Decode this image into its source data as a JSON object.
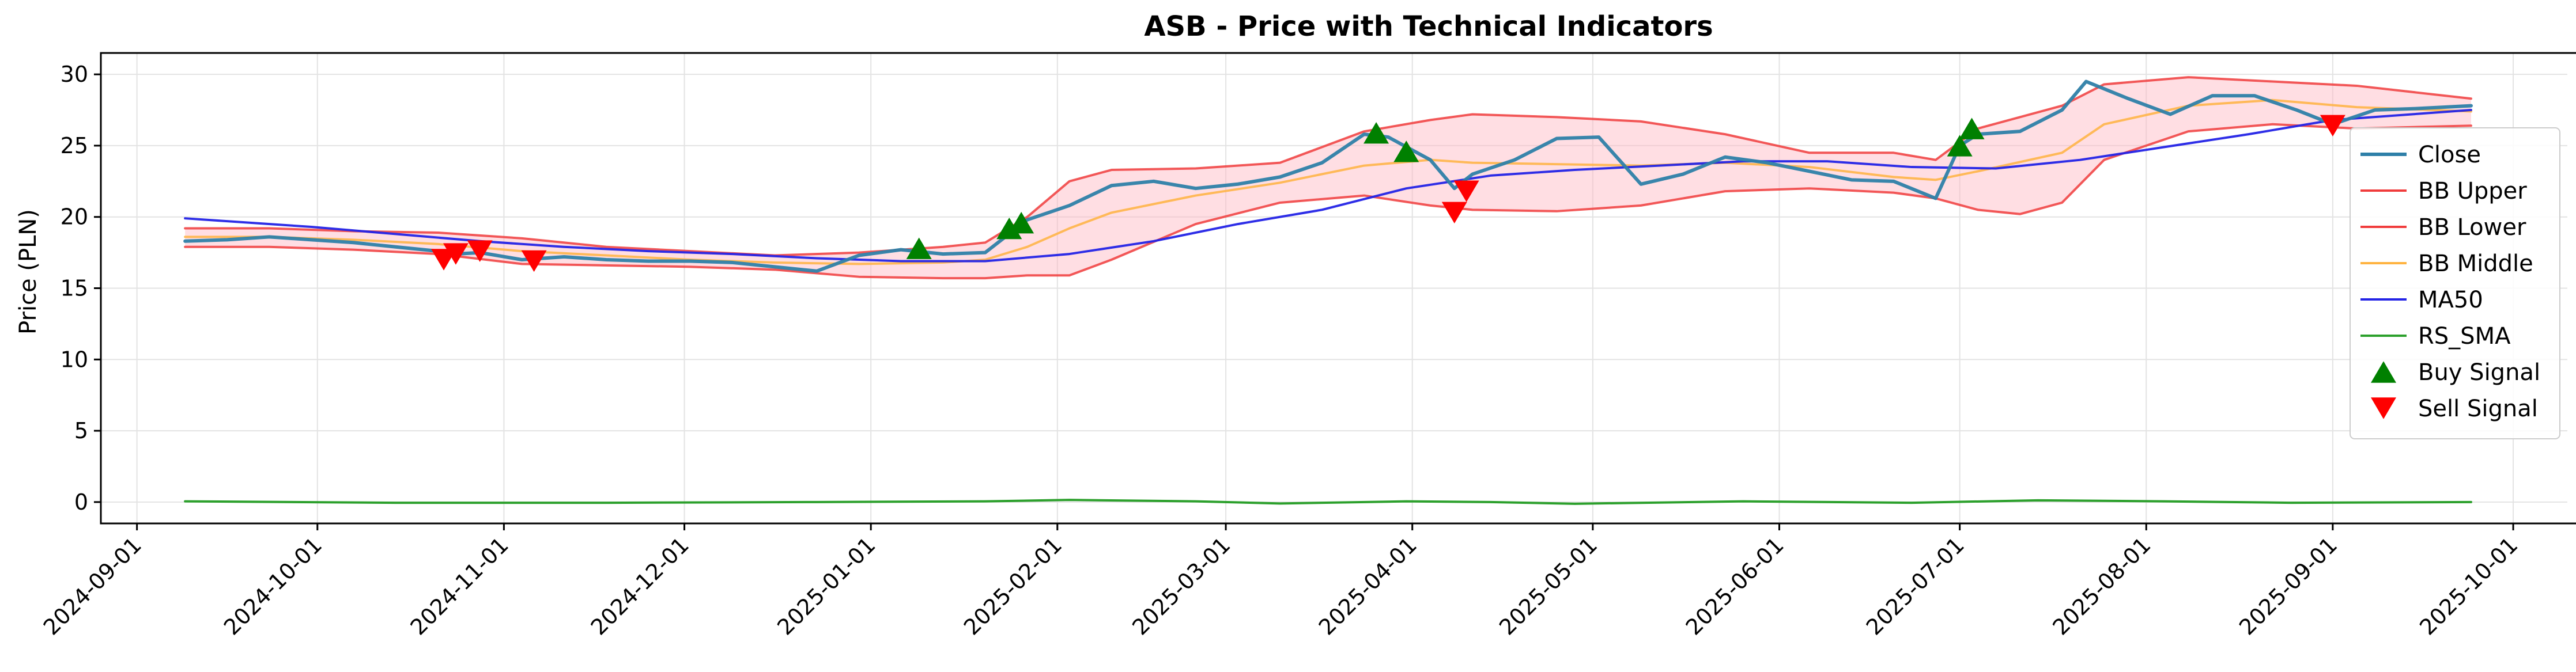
{
  "chart_data": {
    "type": "line",
    "title": "ASB - Price with Technical Indicators",
    "xlabel": "",
    "ylabel": "Price (PLN)",
    "x_range": [
      "2024-08-26",
      "2025-10-10"
    ],
    "ylim": [
      -1.5,
      31.5
    ],
    "grid": true,
    "legend_position": "right",
    "x_ticks": [
      "2024-09-01",
      "2024-10-01",
      "2024-11-01",
      "2024-12-01",
      "2025-01-01",
      "2025-02-01",
      "2025-03-01",
      "2025-04-01",
      "2025-05-01",
      "2025-06-01",
      "2025-07-01",
      "2025-08-01",
      "2025-09-01",
      "2025-10-01"
    ],
    "y_ticks": [
      0,
      5,
      10,
      15,
      20,
      25,
      30
    ],
    "legend": [
      "Close",
      "BB Upper",
      "BB Lower",
      "BB Middle",
      "MA50",
      "RS_SMA",
      "Buy Signal",
      "Sell Signal"
    ],
    "series": [
      {
        "name": "Close",
        "color": "#2e7fa8",
        "points": [
          [
            "2024-09-09",
            18.3
          ],
          [
            "2024-09-16",
            18.4
          ],
          [
            "2024-09-23",
            18.6
          ],
          [
            "2024-09-30",
            18.4
          ],
          [
            "2024-10-07",
            18.2
          ],
          [
            "2024-10-14",
            17.9
          ],
          [
            "2024-10-21",
            17.6
          ],
          [
            "2024-10-24",
            17.4
          ],
          [
            "2024-10-28",
            17.5
          ],
          [
            "2024-11-04",
            17.0
          ],
          [
            "2024-11-11",
            17.2
          ],
          [
            "2024-11-18",
            17.0
          ],
          [
            "2024-11-25",
            16.9
          ],
          [
            "2024-12-02",
            16.9
          ],
          [
            "2024-12-09",
            16.8
          ],
          [
            "2024-12-16",
            16.5
          ],
          [
            "2024-12-23",
            16.2
          ],
          [
            "2024-12-30",
            17.3
          ],
          [
            "2025-01-06",
            17.7
          ],
          [
            "2025-01-13",
            17.4
          ],
          [
            "2025-01-20",
            17.5
          ],
          [
            "2025-01-27",
            19.8
          ],
          [
            "2025-02-03",
            20.8
          ],
          [
            "2025-02-10",
            22.2
          ],
          [
            "2025-02-17",
            22.5
          ],
          [
            "2025-02-24",
            22.0
          ],
          [
            "2025-03-03",
            22.3
          ],
          [
            "2025-03-10",
            22.8
          ],
          [
            "2025-03-17",
            23.8
          ],
          [
            "2025-03-24",
            25.8
          ],
          [
            "2025-03-28",
            25.6
          ],
          [
            "2025-04-04",
            24.0
          ],
          [
            "2025-04-08",
            22.0
          ],
          [
            "2025-04-11",
            23.0
          ],
          [
            "2025-04-18",
            24.0
          ],
          [
            "2025-04-25",
            25.5
          ],
          [
            "2025-05-02",
            25.6
          ],
          [
            "2025-05-09",
            22.3
          ],
          [
            "2025-05-16",
            23.0
          ],
          [
            "2025-05-23",
            24.2
          ],
          [
            "2025-05-30",
            23.8
          ],
          [
            "2025-06-06",
            23.2
          ],
          [
            "2025-06-13",
            22.6
          ],
          [
            "2025-06-20",
            22.5
          ],
          [
            "2025-06-27",
            21.3
          ],
          [
            "2025-07-01",
            25.0
          ],
          [
            "2025-07-04",
            25.8
          ],
          [
            "2025-07-11",
            26.0
          ],
          [
            "2025-07-18",
            27.5
          ],
          [
            "2025-07-22",
            29.5
          ],
          [
            "2025-07-29",
            28.3
          ],
          [
            "2025-08-05",
            27.2
          ],
          [
            "2025-08-12",
            28.5
          ],
          [
            "2025-08-19",
            28.5
          ],
          [
            "2025-08-26",
            27.5
          ],
          [
            "2025-09-01",
            26.5
          ],
          [
            "2025-09-08",
            27.5
          ],
          [
            "2025-09-15",
            27.6
          ],
          [
            "2025-09-24",
            27.8
          ]
        ]
      },
      {
        "name": "BB Upper",
        "color": "#f03c3c",
        "points": [
          [
            "2024-09-09",
            19.2
          ],
          [
            "2024-09-23",
            19.2
          ],
          [
            "2024-10-07",
            19.0
          ],
          [
            "2024-10-21",
            18.9
          ],
          [
            "2024-11-04",
            18.5
          ],
          [
            "2024-11-18",
            17.9
          ],
          [
            "2024-12-02",
            17.6
          ],
          [
            "2024-12-16",
            17.3
          ],
          [
            "2024-12-30",
            17.5
          ],
          [
            "2025-01-13",
            17.9
          ],
          [
            "2025-01-20",
            18.2
          ],
          [
            "2025-01-27",
            20.0
          ],
          [
            "2025-02-03",
            22.5
          ],
          [
            "2025-02-10",
            23.3
          ],
          [
            "2025-02-24",
            23.4
          ],
          [
            "2025-03-10",
            23.8
          ],
          [
            "2025-03-24",
            26.0
          ],
          [
            "2025-04-04",
            26.8
          ],
          [
            "2025-04-11",
            27.2
          ],
          [
            "2025-04-25",
            27.0
          ],
          [
            "2025-05-09",
            26.7
          ],
          [
            "2025-05-23",
            25.8
          ],
          [
            "2025-06-06",
            24.5
          ],
          [
            "2025-06-20",
            24.5
          ],
          [
            "2025-06-27",
            24.0
          ],
          [
            "2025-07-04",
            26.2
          ],
          [
            "2025-07-18",
            27.8
          ],
          [
            "2025-07-25",
            29.3
          ],
          [
            "2025-08-08",
            29.8
          ],
          [
            "2025-08-22",
            29.5
          ],
          [
            "2025-09-05",
            29.2
          ],
          [
            "2025-09-24",
            28.3
          ]
        ]
      },
      {
        "name": "BB Lower",
        "color": "#f03c3c",
        "points": [
          [
            "2024-09-09",
            17.9
          ],
          [
            "2024-09-23",
            17.9
          ],
          [
            "2024-10-07",
            17.7
          ],
          [
            "2024-10-21",
            17.4
          ],
          [
            "2024-11-04",
            16.7
          ],
          [
            "2024-11-18",
            16.6
          ],
          [
            "2024-12-02",
            16.5
          ],
          [
            "2024-12-16",
            16.3
          ],
          [
            "2024-12-30",
            15.8
          ],
          [
            "2025-01-13",
            15.7
          ],
          [
            "2025-01-20",
            15.7
          ],
          [
            "2025-01-27",
            15.9
          ],
          [
            "2025-02-03",
            15.9
          ],
          [
            "2025-02-10",
            17.0
          ],
          [
            "2025-02-24",
            19.5
          ],
          [
            "2025-03-10",
            21.0
          ],
          [
            "2025-03-24",
            21.5
          ],
          [
            "2025-04-04",
            20.8
          ],
          [
            "2025-04-11",
            20.5
          ],
          [
            "2025-04-25",
            20.4
          ],
          [
            "2025-05-09",
            20.8
          ],
          [
            "2025-05-23",
            21.8
          ],
          [
            "2025-06-06",
            22.0
          ],
          [
            "2025-06-20",
            21.7
          ],
          [
            "2025-06-27",
            21.3
          ],
          [
            "2025-07-04",
            20.5
          ],
          [
            "2025-07-11",
            20.2
          ],
          [
            "2025-07-18",
            21.0
          ],
          [
            "2025-07-25",
            24.0
          ],
          [
            "2025-08-08",
            26.0
          ],
          [
            "2025-08-22",
            26.5
          ],
          [
            "2025-09-05",
            26.2
          ],
          [
            "2025-09-24",
            26.4
          ]
        ]
      },
      {
        "name": "BB Middle",
        "color": "#ffb340",
        "points": [
          [
            "2024-09-09",
            18.6
          ],
          [
            "2024-09-23",
            18.6
          ],
          [
            "2024-10-07",
            18.4
          ],
          [
            "2024-10-21",
            18.1
          ],
          [
            "2024-11-04",
            17.6
          ],
          [
            "2024-11-18",
            17.3
          ],
          [
            "2024-12-02",
            17.0
          ],
          [
            "2024-12-16",
            16.8
          ],
          [
            "2024-12-30",
            16.7
          ],
          [
            "2025-01-13",
            16.8
          ],
          [
            "2025-01-20",
            17.0
          ],
          [
            "2025-01-27",
            17.9
          ],
          [
            "2025-02-03",
            19.2
          ],
          [
            "2025-02-10",
            20.3
          ],
          [
            "2025-02-24",
            21.5
          ],
          [
            "2025-03-10",
            22.4
          ],
          [
            "2025-03-24",
            23.6
          ],
          [
            "2025-04-04",
            24.0
          ],
          [
            "2025-04-11",
            23.8
          ],
          [
            "2025-04-25",
            23.7
          ],
          [
            "2025-05-09",
            23.6
          ],
          [
            "2025-05-23",
            23.8
          ],
          [
            "2025-06-06",
            23.5
          ],
          [
            "2025-06-20",
            22.8
          ],
          [
            "2025-06-27",
            22.6
          ],
          [
            "2025-07-04",
            23.2
          ],
          [
            "2025-07-18",
            24.5
          ],
          [
            "2025-07-25",
            26.5
          ],
          [
            "2025-08-08",
            27.8
          ],
          [
            "2025-08-22",
            28.2
          ],
          [
            "2025-09-05",
            27.7
          ],
          [
            "2025-09-24",
            27.4
          ]
        ]
      },
      {
        "name": "MA50",
        "color": "#2323e6",
        "points": [
          [
            "2024-09-09",
            19.9
          ],
          [
            "2024-09-16",
            19.7
          ],
          [
            "2024-09-30",
            19.3
          ],
          [
            "2024-10-14",
            18.8
          ],
          [
            "2024-10-28",
            18.3
          ],
          [
            "2024-11-11",
            17.9
          ],
          [
            "2024-11-25",
            17.6
          ],
          [
            "2024-12-09",
            17.4
          ],
          [
            "2024-12-23",
            17.1
          ],
          [
            "2025-01-06",
            16.9
          ],
          [
            "2025-01-20",
            16.9
          ],
          [
            "2025-02-03",
            17.4
          ],
          [
            "2025-02-17",
            18.3
          ],
          [
            "2025-03-03",
            19.5
          ],
          [
            "2025-03-17",
            20.5
          ],
          [
            "2025-03-31",
            22.0
          ],
          [
            "2025-04-14",
            22.9
          ],
          [
            "2025-04-28",
            23.3
          ],
          [
            "2025-05-12",
            23.6
          ],
          [
            "2025-05-26",
            23.9
          ],
          [
            "2025-06-09",
            23.9
          ],
          [
            "2025-06-23",
            23.5
          ],
          [
            "2025-07-07",
            23.4
          ],
          [
            "2025-07-21",
            24.0
          ],
          [
            "2025-08-04",
            24.9
          ],
          [
            "2025-08-18",
            25.8
          ],
          [
            "2025-09-01",
            26.8
          ],
          [
            "2025-09-24",
            27.5
          ]
        ]
      },
      {
        "name": "RS_SMA",
        "color": "#2ca02c",
        "points": [
          [
            "2024-09-09",
            0.05
          ],
          [
            "2024-10-14",
            -0.05
          ],
          [
            "2024-11-18",
            -0.05
          ],
          [
            "2024-12-23",
            0.0
          ],
          [
            "2025-01-20",
            0.05
          ],
          [
            "2025-02-03",
            0.15
          ],
          [
            "2025-02-24",
            0.05
          ],
          [
            "2025-03-10",
            -0.1
          ],
          [
            "2025-03-31",
            0.05
          ],
          [
            "2025-04-14",
            0.0
          ],
          [
            "2025-04-28",
            -0.12
          ],
          [
            "2025-05-26",
            0.05
          ],
          [
            "2025-06-23",
            -0.05
          ],
          [
            "2025-07-14",
            0.12
          ],
          [
            "2025-08-04",
            0.05
          ],
          [
            "2025-08-25",
            -0.05
          ],
          [
            "2025-09-24",
            0.0
          ]
        ]
      }
    ],
    "buy_signals": {
      "name": "Buy Signal",
      "color": "#008000",
      "points": [
        [
          "2025-01-09",
          17.8
        ],
        [
          "2025-01-24",
          19.2
        ],
        [
          "2025-01-26",
          19.6
        ],
        [
          "2025-03-26",
          25.9
        ],
        [
          "2025-03-31",
          24.6
        ],
        [
          "2025-07-01",
          25.0
        ],
        [
          "2025-07-03",
          26.2
        ]
      ]
    },
    "sell_signals": {
      "name": "Sell Signal",
      "color": "#ff0000",
      "points": [
        [
          "2024-10-22",
          17.0
        ],
        [
          "2024-10-24",
          17.4
        ],
        [
          "2024-10-28",
          17.6
        ],
        [
          "2024-11-06",
          16.9
        ],
        [
          "2025-04-08",
          20.3
        ],
        [
          "2025-04-10",
          21.8
        ],
        [
          "2025-09-01",
          26.4
        ]
      ]
    }
  }
}
